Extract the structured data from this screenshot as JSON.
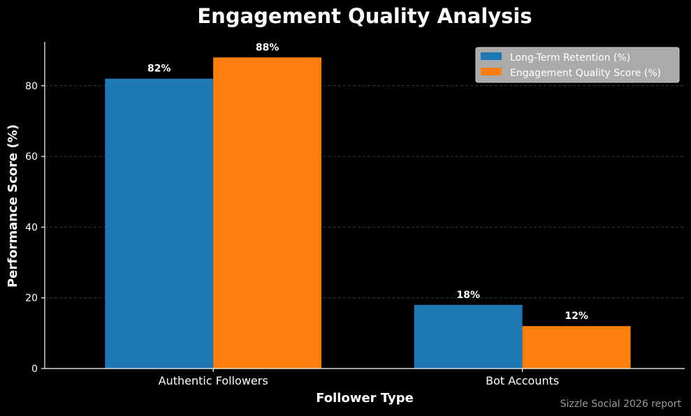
{
  "chart_data": {
    "type": "bar",
    "title": "Engagement Quality Analysis",
    "xlabel": "Follower Type",
    "ylabel": "Performance Score (%)",
    "categories": [
      "Authentic Followers",
      "Bot Accounts"
    ],
    "series": [
      {
        "name": "Long-Term Retention (%)",
        "values": [
          82,
          18
        ],
        "labels": [
          "82%",
          "18%"
        ],
        "color": "#1f77b4"
      },
      {
        "name": "Engagement Quality Score (%)",
        "values": [
          88,
          12
        ],
        "labels": [
          "88%",
          "12%"
        ],
        "color": "#ff7f0e"
      }
    ],
    "yticks": [
      0,
      20,
      40,
      60,
      80
    ],
    "ylim": [
      0,
      92.4
    ],
    "grid": true,
    "legend_position": "top-right",
    "source_note": "Sizzle Social 2026 report"
  }
}
